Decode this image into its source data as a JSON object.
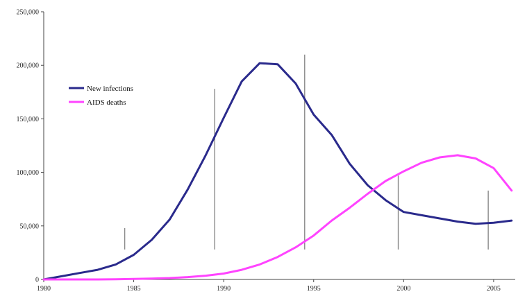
{
  "chart_data": {
    "type": "line",
    "title": "",
    "xlabel": "",
    "ylabel": "",
    "xlim": [
      1980,
      2006.2
    ],
    "ylim": [
      0,
      250000
    ],
    "x_ticks": [
      1980,
      1985,
      1990,
      1995,
      2000,
      2005
    ],
    "x_tick_labels": [
      "1980",
      "1985",
      "1990",
      "1995",
      "2000",
      "2005"
    ],
    "y_ticks": [
      0,
      50000,
      100000,
      150000,
      200000,
      250000
    ],
    "y_tick_labels": [
      "0",
      "50,000",
      "100,000",
      "150,000",
      "200,000",
      "250,000"
    ],
    "grid": false,
    "legend_position": "upper-left",
    "series": [
      {
        "name": "New infections",
        "color": "#2a2a8c",
        "x": [
          1980,
          1981,
          1982,
          1983,
          1984,
          1985,
          1986,
          1987,
          1988,
          1989,
          1990,
          1991,
          1992,
          1993,
          1994,
          1995,
          1996,
          1997,
          1998,
          1999,
          2000,
          2001,
          2002,
          2003,
          2004,
          2005,
          2006
        ],
        "values": [
          0,
          3000,
          6000,
          9000,
          14000,
          23000,
          37000,
          56000,
          84000,
          116000,
          151000,
          185000,
          202000,
          201000,
          183000,
          154000,
          135000,
          108000,
          88000,
          74000,
          63000,
          60000,
          57000,
          54000,
          52000,
          53000,
          55000
        ]
      },
      {
        "name": "AIDS deaths",
        "color": "#ff44ff",
        "x": [
          1980,
          1981,
          1982,
          1983,
          1984,
          1985,
          1986,
          1987,
          1988,
          1989,
          1990,
          1991,
          1992,
          1993,
          1994,
          1995,
          1996,
          1997,
          1998,
          1999,
          2000,
          2001,
          2002,
          2003,
          2004,
          2005,
          2006
        ],
        "values": [
          0,
          0,
          0,
          0,
          200,
          500,
          800,
          1300,
          2200,
          3500,
          5500,
          9000,
          14000,
          21000,
          30000,
          41000,
          55000,
          67000,
          80000,
          92000,
          101000,
          109000,
          114000,
          116000,
          113000,
          104000,
          83000
        ]
      }
    ],
    "error_bars": [
      {
        "x": 1984.5,
        "low": 28000,
        "high": 48000
      },
      {
        "x": 1989.5,
        "low": 28000,
        "high": 178000
      },
      {
        "x": 1994.5,
        "low": 28000,
        "high": 210000
      },
      {
        "x": 1999.7,
        "low": 28000,
        "high": 97000
      },
      {
        "x": 2004.7,
        "low": 28000,
        "high": 83000
      }
    ]
  }
}
